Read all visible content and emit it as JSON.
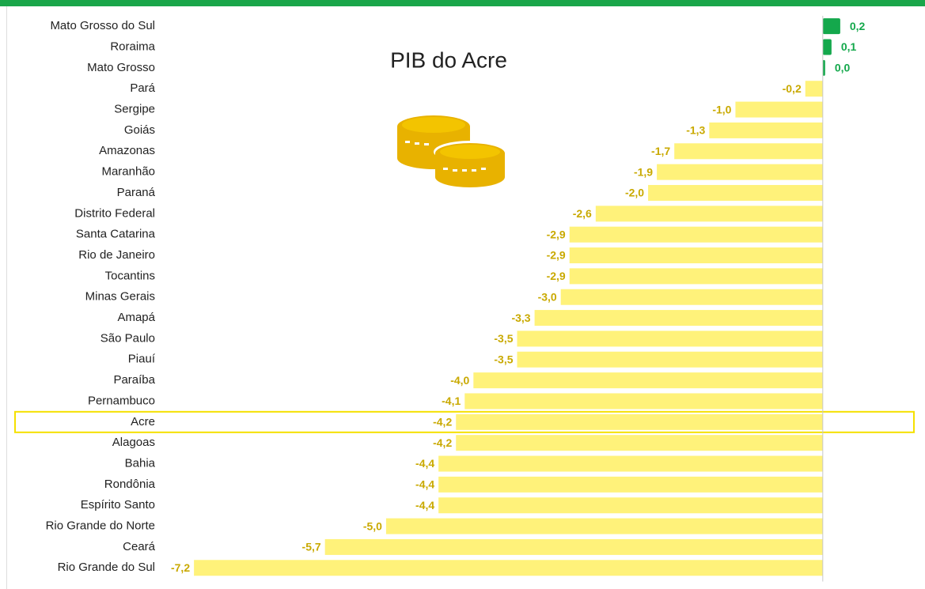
{
  "chart_data": {
    "type": "hbar",
    "title": "PIB do Acre",
    "categories": [
      "Mato Grosso do Sul",
      "Roraima",
      "Mato Grosso",
      "Pará",
      "Sergipe",
      "Goiás",
      "Amazonas",
      "Maranhão",
      "Paraná",
      "Distrito Federal",
      "Santa Catarina",
      "Rio de Janeiro",
      "Tocantins",
      "Minas Gerais",
      "Amapá",
      "São Paulo",
      "Piauí",
      "Paraíba",
      "Pernambuco",
      "Acre",
      "Alagoas",
      "Bahia",
      "Rondônia",
      "Espírito Santo",
      "Rio Grande do Norte",
      "Ceará",
      "Rio Grande do Sul"
    ],
    "values": [
      0.2,
      0.1,
      0.0,
      -0.2,
      -1.0,
      -1.3,
      -1.7,
      -1.9,
      -2.0,
      -2.6,
      -2.9,
      -2.9,
      -2.9,
      -3.0,
      -3.3,
      -3.5,
      -3.5,
      -4.0,
      -4.1,
      -4.2,
      -4.2,
      -4.4,
      -4.4,
      -4.4,
      -5.0,
      -5.7,
      -7.2
    ],
    "value_labels": [
      "0,2",
      "0,1",
      "0,0",
      "-0,2",
      "-1,0",
      "-1,3",
      "-1,7",
      "-1,9",
      "-2,0",
      "-2,6",
      "-2,9",
      "-2,9",
      "-2,9",
      "-3,0",
      "-3,3",
      "-3,5",
      "-3,5",
      "-4,0",
      "-4,1",
      "-4,2",
      "-4,2",
      "-4,4",
      "-4,4",
      "-4,4",
      "-5,0",
      "-5,7",
      "-7,2"
    ],
    "xlim": [
      -7.5,
      0.5
    ],
    "xticks": [
      0
    ],
    "positive_color": "#14a84c",
    "negative_color": "#fff27a",
    "positive_label_color": "#14a84c",
    "negative_label_color": "#c9a900",
    "highlight": "Acre"
  }
}
